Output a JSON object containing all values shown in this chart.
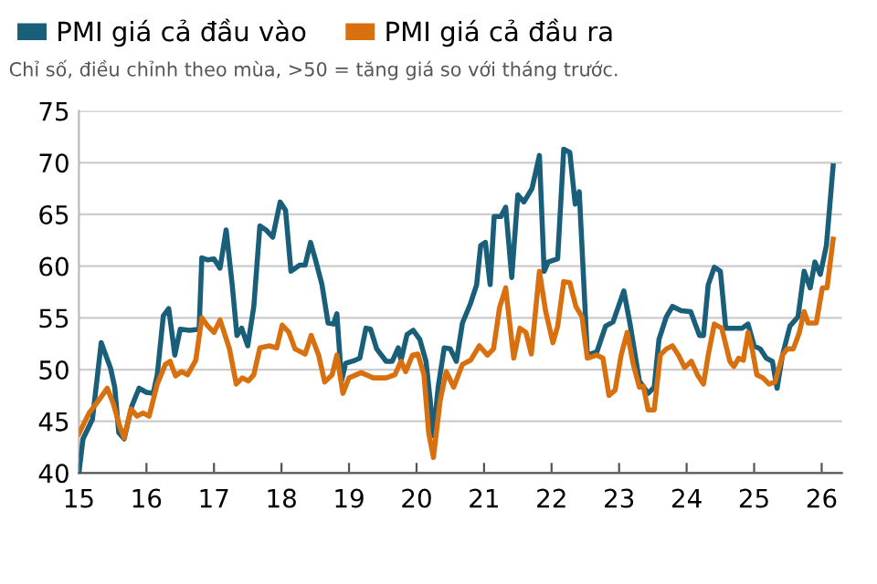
{
  "chart_data": {
    "type": "line",
    "subtitle": "Chỉ số, điều chỉnh theo mùa, >50 = tăng giá so với tháng trước.",
    "legend": "top left",
    "grid": "y",
    "marker": "none",
    "line_style": "solid",
    "xlim": [
      2015,
      2026.3
    ],
    "xticks": [
      {
        "value": 2015,
        "label": "15"
      },
      {
        "value": 2016,
        "label": "16"
      },
      {
        "value": 2017,
        "label": "17"
      },
      {
        "value": 2018,
        "label": "18"
      },
      {
        "value": 2019,
        "label": "19"
      },
      {
        "value": 2020,
        "label": "20"
      },
      {
        "value": 2021,
        "label": "21"
      },
      {
        "value": 2022,
        "label": "22"
      },
      {
        "value": 2023,
        "label": "23"
      },
      {
        "value": 2024,
        "label": "24"
      },
      {
        "value": 2025,
        "label": "25"
      },
      {
        "value": 2026,
        "label": "26"
      }
    ],
    "ylim": [
      40,
      75
    ],
    "yticks": [
      40,
      45,
      50,
      55,
      60,
      65,
      70,
      75
    ],
    "series": [
      {
        "name": "PMI giá cả đầu vào",
        "color": "#1a5f7a",
        "x": [
          2015.0,
          2015.06,
          2015.2,
          2015.33,
          2015.47,
          2015.53,
          2015.59,
          2015.67,
          2015.78,
          2015.89,
          2016.0,
          2016.1,
          2016.16,
          2016.25,
          2016.33,
          2016.42,
          2016.5,
          2016.64,
          2016.78,
          2016.82,
          2016.91,
          2017.0,
          2017.09,
          2017.18,
          2017.27,
          2017.34,
          2017.41,
          2017.5,
          2017.59,
          2017.68,
          2017.77,
          2017.87,
          2017.98,
          2018.06,
          2018.14,
          2018.27,
          2018.35,
          2018.43,
          2018.5,
          2018.6,
          2018.69,
          2018.77,
          2018.82,
          2018.89,
          2018.95,
          2019.09,
          2019.16,
          2019.25,
          2019.32,
          2019.41,
          2019.55,
          2019.64,
          2019.73,
          2019.77,
          2019.86,
          2019.95,
          2020.05,
          2020.14,
          2020.2,
          2020.25,
          2020.32,
          2020.41,
          2020.5,
          2020.59,
          2020.68,
          2020.8,
          2020.89,
          2020.95,
          2021.02,
          2021.09,
          2021.15,
          2021.25,
          2021.32,
          2021.41,
          2021.5,
          2021.59,
          2021.71,
          2021.82,
          2021.89,
          2021.95,
          2022.09,
          2022.18,
          2022.27,
          2022.35,
          2022.41,
          2022.53,
          2022.67,
          2022.8,
          2022.91,
          2023.07,
          2023.16,
          2023.3,
          2023.43,
          2023.52,
          2023.59,
          2023.7,
          2023.79,
          2023.92,
          2024.06,
          2024.19,
          2024.25,
          2024.32,
          2024.41,
          2024.5,
          2024.58,
          2024.68,
          2024.82,
          2024.91,
          2025.0,
          2025.09,
          2025.18,
          2025.27,
          2025.34,
          2025.42,
          2025.53,
          2025.65,
          2025.74,
          2025.83,
          2025.9,
          2025.98,
          2026.07,
          2026.17
        ],
        "values": [
          40.0,
          43.3,
          45.2,
          52.6,
          50.1,
          48.3,
          43.9,
          43.3,
          46.4,
          48.2,
          47.8,
          47.7,
          49.5,
          55.2,
          55.9,
          51.4,
          53.9,
          53.8,
          53.9,
          60.8,
          60.6,
          60.7,
          59.8,
          63.5,
          58.2,
          53.3,
          54.0,
          52.3,
          56.1,
          63.9,
          63.5,
          62.8,
          66.2,
          65.4,
          59.5,
          60.1,
          60.1,
          62.3,
          60.7,
          58.2,
          54.5,
          54.4,
          55.4,
          48.9,
          50.6,
          50.9,
          51.1,
          54.0,
          53.9,
          52.0,
          50.8,
          50.8,
          52.1,
          50.9,
          53.4,
          53.8,
          52.9,
          50.8,
          47.2,
          43.6,
          48.3,
          52.1,
          52.0,
          50.8,
          54.5,
          56.4,
          58.2,
          62.0,
          62.3,
          58.2,
          64.8,
          64.8,
          65.7,
          58.9,
          66.9,
          66.2,
          67.5,
          70.7,
          59.5,
          60.4,
          60.7,
          71.3,
          71.0,
          66.0,
          67.2,
          51.4,
          51.7,
          54.2,
          54.6,
          57.6,
          54.5,
          48.9,
          47.7,
          48.3,
          52.9,
          55.1,
          56.1,
          55.7,
          55.6,
          53.3,
          53.3,
          58.2,
          59.9,
          59.5,
          54.0,
          54.0,
          54.0,
          54.4,
          52.3,
          52.0,
          51.1,
          50.8,
          48.2,
          51.4,
          54.2,
          55.1,
          59.5,
          57.9,
          60.4,
          59.2,
          62.0,
          69.7
        ]
      },
      {
        "name": "PMI giá cả đầu ra",
        "color": "#d9700f",
        "x": [
          2015.0,
          2015.15,
          2015.29,
          2015.42,
          2015.51,
          2015.6,
          2015.67,
          2015.77,
          2015.86,
          2015.95,
          2016.04,
          2016.16,
          2016.28,
          2016.35,
          2016.43,
          2016.52,
          2016.61,
          2016.73,
          2016.82,
          2016.91,
          2017.0,
          2017.09,
          2017.23,
          2017.33,
          2017.42,
          2017.51,
          2017.59,
          2017.68,
          2017.82,
          2017.93,
          2018.01,
          2018.11,
          2018.2,
          2018.35,
          2018.44,
          2018.55,
          2018.64,
          2018.75,
          2018.82,
          2018.91,
          2019.0,
          2019.18,
          2019.36,
          2019.55,
          2019.68,
          2019.77,
          2019.84,
          2019.94,
          2020.02,
          2020.11,
          2020.18,
          2020.25,
          2020.35,
          2020.44,
          2020.55,
          2020.68,
          2020.8,
          2020.93,
          2021.05,
          2021.14,
          2021.23,
          2021.32,
          2021.44,
          2021.53,
          2021.62,
          2021.7,
          2021.82,
          2021.91,
          2022.02,
          2022.09,
          2022.18,
          2022.27,
          2022.36,
          2022.45,
          2022.53,
          2022.67,
          2022.76,
          2022.85,
          2022.94,
          2023.03,
          2023.12,
          2023.21,
          2023.3,
          2023.36,
          2023.43,
          2023.52,
          2023.61,
          2023.7,
          2023.79,
          2023.88,
          2023.97,
          2024.07,
          2024.16,
          2024.25,
          2024.32,
          2024.41,
          2024.52,
          2024.64,
          2024.7,
          2024.77,
          2024.84,
          2024.91,
          2024.97,
          2025.04,
          2025.13,
          2025.22,
          2025.31,
          2025.42,
          2025.49,
          2025.58,
          2025.67,
          2025.74,
          2025.8,
          2025.92,
          2026.01,
          2026.08,
          2026.17
        ],
        "values": [
          43.8,
          45.8,
          47.0,
          48.2,
          46.7,
          44.6,
          43.4,
          46.2,
          45.5,
          45.8,
          45.5,
          48.6,
          50.5,
          50.8,
          49.4,
          49.8,
          49.5,
          50.9,
          55.0,
          54.2,
          53.6,
          54.8,
          52.0,
          48.6,
          49.2,
          48.9,
          49.5,
          52.1,
          52.3,
          52.1,
          54.3,
          53.6,
          52.0,
          51.5,
          53.3,
          51.4,
          48.8,
          49.5,
          51.4,
          47.7,
          49.2,
          49.7,
          49.2,
          49.2,
          49.5,
          50.8,
          49.8,
          51.4,
          51.5,
          49.5,
          43.9,
          41.5,
          47.0,
          49.8,
          48.3,
          50.5,
          50.9,
          52.3,
          51.4,
          52.0,
          56.0,
          57.9,
          51.1,
          54.0,
          53.6,
          51.5,
          59.5,
          55.7,
          52.6,
          54.2,
          58.5,
          58.4,
          56.1,
          55.1,
          51.1,
          51.4,
          51.1,
          47.5,
          48.0,
          51.4,
          53.6,
          50.5,
          48.3,
          48.4,
          46.1,
          46.1,
          51.4,
          52.0,
          52.3,
          51.4,
          50.2,
          50.8,
          49.5,
          48.6,
          51.4,
          54.4,
          54.0,
          50.8,
          50.3,
          51.1,
          50.9,
          53.6,
          52.0,
          49.5,
          49.2,
          48.6,
          48.8,
          51.4,
          52.0,
          52.0,
          53.6,
          55.6,
          54.5,
          54.5,
          57.9,
          57.9,
          62.6
        ]
      }
    ]
  }
}
